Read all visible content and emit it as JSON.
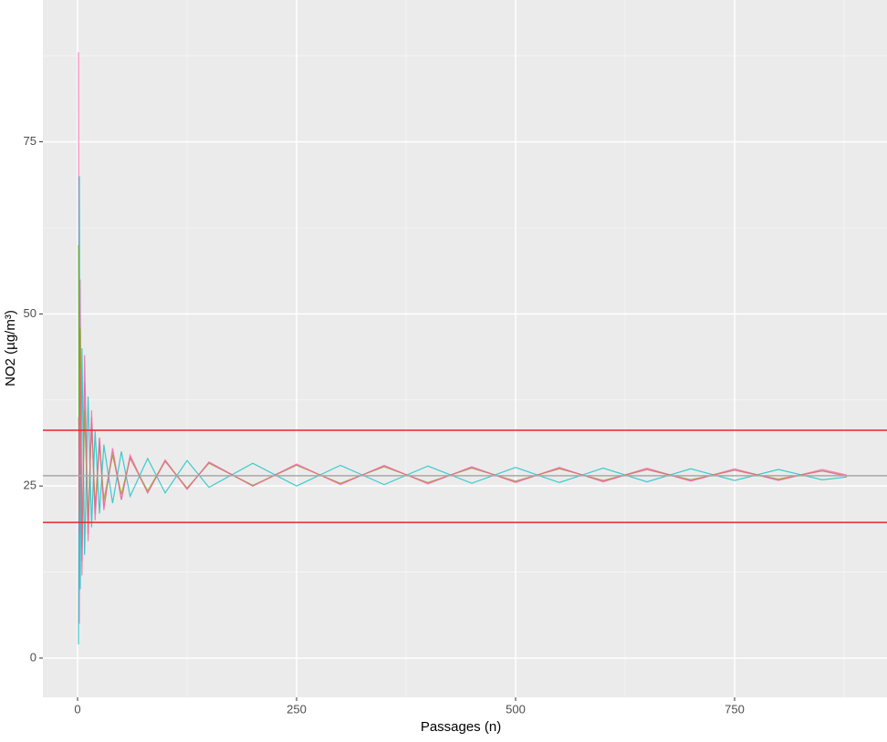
{
  "chart_data": {
    "type": "line",
    "x_label": "Passages (n)",
    "y_label": "NO2 (µg/m³)",
    "x": [
      1,
      2,
      3,
      5,
      8,
      12,
      16,
      20,
      25,
      30,
      40,
      50,
      60,
      80,
      100,
      125,
      150,
      200,
      250,
      300,
      350,
      400,
      450,
      500,
      550,
      600,
      650,
      700,
      750,
      800,
      850,
      878
    ],
    "series": [
      {
        "color": "#f564a9",
        "values": [
          88,
          5,
          55,
          14,
          40,
          18,
          35,
          21,
          32,
          22,
          30,
          23,
          29.5,
          24,
          28.8,
          24.5,
          28.5,
          25,
          28.2,
          25.2,
          28,
          25.3,
          27.8,
          25.5,
          27.7,
          25.6,
          27.6,
          25.7,
          27.5,
          25.8,
          27.4,
          26.6
        ]
      },
      {
        "color": "#00bfc4",
        "values": [
          2,
          70,
          10,
          45,
          15,
          38,
          19,
          33,
          21,
          31,
          22.5,
          30,
          23.5,
          29,
          24,
          28.7,
          24.8,
          28.3,
          25,
          28,
          25.2,
          27.9,
          25.4,
          27.7,
          25.5,
          27.6,
          25.6,
          27.5,
          25.8,
          27.4,
          25.9,
          26.3
        ]
      },
      {
        "color": "#7cae00",
        "values": [
          60,
          20,
          48,
          16,
          36,
          20,
          34,
          22,
          31,
          23,
          29.5,
          23.8,
          29,
          24.3,
          28.6,
          24.7,
          28.3,
          25.1,
          28,
          25.4,
          27.8,
          25.5,
          27.6,
          25.7,
          27.5,
          25.8,
          27.4,
          25.9,
          27.3,
          26,
          27.2,
          26.4
        ]
      },
      {
        "color": "#f0609e",
        "values": [
          35,
          18,
          42,
          12,
          44,
          17,
          36,
          20,
          32,
          21.5,
          30.5,
          23,
          29.2,
          24,
          28.6,
          24.6,
          28.4,
          25,
          28.1,
          25.3,
          27.9,
          25.4,
          27.7,
          25.6,
          27.6,
          25.7,
          27.4,
          25.8,
          27.3,
          25.9,
          27.2,
          26.5
        ]
      }
    ],
    "reference_lines": [
      {
        "value": 33.1,
        "color": "#e8262c"
      },
      {
        "value": 19.7,
        "color": "#e8262c"
      },
      {
        "value": 26.5,
        "color": "#a8a8a8"
      }
    ],
    "xlim": [
      -39.6,
      924
    ],
    "ylim": [
      -5.7,
      95.6
    ],
    "xticks": [
      0,
      250,
      500,
      750
    ],
    "yticks": [
      0,
      25,
      50,
      75
    ],
    "minor_xticks": [
      125,
      375,
      625,
      875
    ],
    "minor_yticks": [
      12.5,
      37.5,
      62.5,
      87.5
    ],
    "grid": true
  }
}
